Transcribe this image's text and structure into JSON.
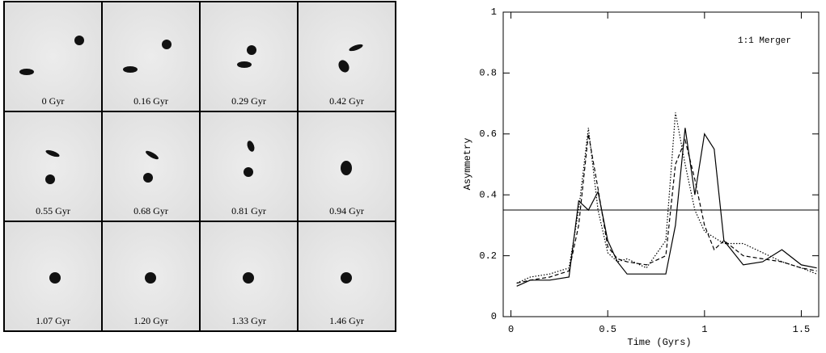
{
  "panels": [
    "0 Gyr",
    "0.16 Gyr",
    "0.29 Gyr",
    "0.42 Gyr",
    "0.55 Gyr",
    "0.68 Gyr",
    "0.81 Gyr",
    "0.94 Gyr",
    "1.07 Gyr",
    "1.20 Gyr",
    "1.33 Gyr",
    "1.46 Gyr"
  ],
  "chart_data": {
    "type": "line",
    "xlabel": "Time (Gyrs)",
    "ylabel": "Asymmetry",
    "annotation": "1:1 Merger",
    "x": [
      0.03,
      0.1,
      0.2,
      0.3,
      0.35,
      0.4,
      0.45,
      0.5,
      0.55,
      0.6,
      0.7,
      0.8,
      0.85,
      0.9,
      0.95,
      1.0,
      1.05,
      1.1,
      1.2,
      1.3,
      1.4,
      1.5,
      1.58
    ],
    "series": [
      {
        "color": "#000",
        "linestyle": "solid",
        "values": [
          0.1,
          0.12,
          0.12,
          0.13,
          0.38,
          0.35,
          0.41,
          0.25,
          0.18,
          0.14,
          0.14,
          0.14,
          0.3,
          0.62,
          0.4,
          0.6,
          0.55,
          0.25,
          0.17,
          0.18,
          0.22,
          0.17,
          0.16
        ]
      },
      {
        "color": "#000",
        "linestyle": "dashed",
        "values": [
          0.11,
          0.12,
          0.13,
          0.15,
          0.3,
          0.6,
          0.42,
          0.23,
          0.19,
          0.18,
          0.17,
          0.2,
          0.5,
          0.58,
          0.45,
          0.3,
          0.22,
          0.25,
          0.2,
          0.19,
          0.18,
          0.16,
          0.15
        ]
      },
      {
        "color": "#000",
        "linestyle": "dotted",
        "values": [
          0.11,
          0.13,
          0.14,
          0.16,
          0.35,
          0.62,
          0.35,
          0.21,
          0.18,
          0.19,
          0.16,
          0.25,
          0.67,
          0.5,
          0.35,
          0.28,
          0.26,
          0.24,
          0.24,
          0.21,
          0.18,
          0.16,
          0.14
        ]
      }
    ],
    "threshold": 0.35,
    "xlim": [
      -0.04,
      1.59
    ],
    "ylim": [
      0,
      1
    ],
    "xticks": [
      0,
      0.5,
      1,
      1.5
    ],
    "yticks": [
      0,
      0.2,
      0.4,
      0.6,
      0.8,
      1
    ]
  }
}
